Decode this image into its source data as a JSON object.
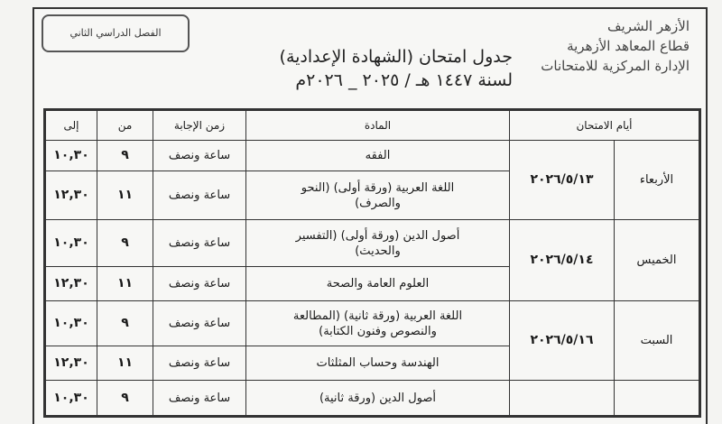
{
  "header": {
    "logo_lines": [
      "الأزهر الشريف",
      "قطاع المعاهد الأزهرية",
      "الإدارة المركزية للامتحانات"
    ],
    "title": "جدول امتحان (الشهادة الإعدادية)",
    "year": "لسنة ١٤٤٧ هـ / ٢٠٢٥ _ ٢٠٢٦م",
    "term": "الفصل الدراسي الثاني"
  },
  "table": {
    "headers": {
      "days": "أيام الامتحان",
      "subject": "المادة",
      "duration": "زمن الإجابة",
      "from": "من",
      "to": "إلى"
    },
    "groups": [
      {
        "day": "الأربعاء",
        "date": "٢٠٢٦/٥/١٣",
        "rows": [
          {
            "subject": "الفقه",
            "duration": "ساعة ونصف",
            "from": "٩",
            "to": "١٠,٣٠"
          },
          {
            "subject": "اللغة العربية (ورقة أولى) (النحو والصرف)",
            "duration": "ساعة ونصف",
            "from": "١١",
            "to": "١٢,٣٠"
          }
        ]
      },
      {
        "day": "الخميس",
        "date": "٢٠٢٦/٥/١٤",
        "rows": [
          {
            "subject": "أصول الدين (ورقة أولى) (التفسير والحديث)",
            "duration": "ساعة ونصف",
            "from": "٩",
            "to": "١٠,٣٠"
          },
          {
            "subject": "العلوم العامة والصحة",
            "duration": "ساعة ونصف",
            "from": "١١",
            "to": "١٢,٣٠"
          }
        ]
      },
      {
        "day": "السبت",
        "date": "٢٠٢٦/٥/١٦",
        "rows": [
          {
            "subject": "اللغة العربية (ورقة ثانية) (المطالعة والنصوص وفنون الكتابة)",
            "duration": "ساعة ونصف",
            "from": "٩",
            "to": "١٠,٣٠"
          },
          {
            "subject": "الهندسة وحساب المثلثات",
            "duration": "ساعة ونصف",
            "from": "١١",
            "to": "١٢,٣٠"
          }
        ]
      },
      {
        "day": "",
        "date": "",
        "rows": [
          {
            "subject": "أصول الدين (ورقة ثانية)",
            "duration": "ساعة ونصف",
            "from": "٩",
            "to": "١٠,٣٠"
          }
        ]
      }
    ]
  }
}
